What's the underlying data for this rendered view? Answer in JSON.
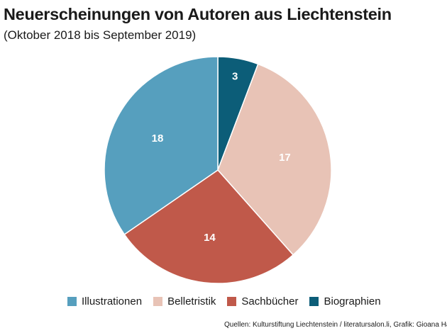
{
  "header": {
    "title": "Neuerscheinungen von Autoren aus Liechtenstein",
    "subtitle": "(Oktober 2018 bis September 2019)"
  },
  "footer": {
    "source": "Quellen: Kulturstiftung Liechtenstein / literatursalon.li, Grafik: Gioana Ha"
  },
  "chart_data": {
    "type": "pie",
    "title": "Neuerscheinungen von Autoren aus Liechtenstein",
    "subtitle": "(Oktober 2018 bis September 2019)",
    "start": "12 o'clock",
    "direction": "clockwise",
    "legend_position": "bottom",
    "slices": [
      {
        "label": "Biographien",
        "value": 3,
        "color": "#0c5d78"
      },
      {
        "label": "Belletristik",
        "value": 17,
        "color": "#e8c3b6"
      },
      {
        "label": "Sachbücher",
        "value": 14,
        "color": "#c0594a"
      },
      {
        "label": "Illustrationen",
        "value": 18,
        "color": "#569fbe"
      }
    ],
    "legend_order": [
      "Illustrationen",
      "Belletristik",
      "Sachbücher",
      "Biographien"
    ]
  }
}
